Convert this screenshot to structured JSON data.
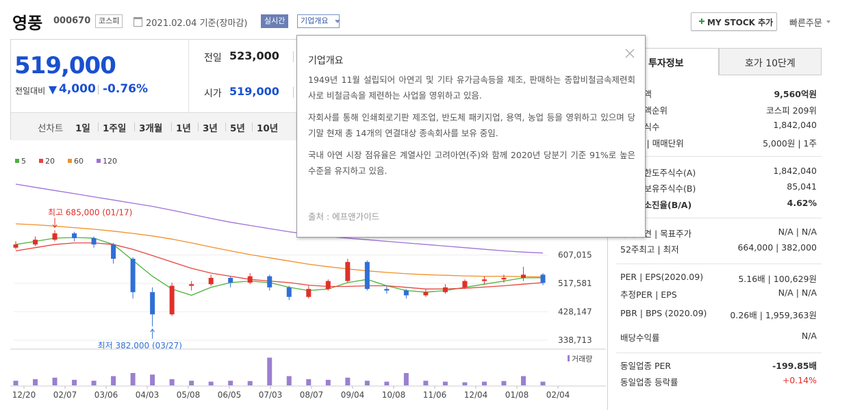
{
  "header": {
    "name": "영풍",
    "code": "000670",
    "market": "코스피",
    "date": "2021.02.04 기준(장마감)",
    "realtime": "실시간",
    "overview_button": "기업개요",
    "mystock_button": "MY STOCK 추가",
    "quick_order": "빠른주문"
  },
  "quote": {
    "price": "519,000",
    "change_label": "전일대비",
    "change": "4,000",
    "change_rate": "-0.76%",
    "prev_label": "전일",
    "prev": "523,000",
    "open_label": "시가",
    "open": "519,000"
  },
  "periods": [
    "선차트",
    "1일",
    "1주일",
    "3개월",
    "1년",
    "3년",
    "5년",
    "10년"
  ],
  "chart_data": {
    "type": "candlestick",
    "candles": [
      [
        630000,
        650000,
        625000,
        640000
      ],
      [
        640000,
        665000,
        635000,
        655000
      ],
      [
        655000,
        685000,
        650000,
        675000
      ],
      [
        675000,
        680000,
        650000,
        660000
      ],
      [
        660000,
        665000,
        630000,
        640000
      ],
      [
        640000,
        645000,
        580000,
        595000
      ],
      [
        595000,
        600000,
        470000,
        490000
      ],
      [
        490000,
        505000,
        382000,
        420000
      ],
      [
        420000,
        520000,
        415000,
        510000
      ],
      [
        510000,
        525000,
        495000,
        515000
      ],
      [
        515000,
        545000,
        510000,
        535000
      ],
      [
        535000,
        540000,
        505000,
        520000
      ],
      [
        520000,
        550000,
        515000,
        540000
      ],
      [
        540000,
        545000,
        495000,
        505000
      ],
      [
        505000,
        510000,
        465000,
        475000
      ],
      [
        475000,
        510000,
        470000,
        500000
      ],
      [
        500000,
        530000,
        495000,
        525000
      ],
      [
        525000,
        595000,
        520000,
        585000
      ],
      [
        585000,
        590000,
        495000,
        500000
      ],
      [
        500000,
        510000,
        485000,
        495000
      ],
      [
        495000,
        500000,
        470000,
        480000
      ],
      [
        480000,
        500000,
        475000,
        490000
      ],
      [
        490000,
        515000,
        485000,
        505000
      ],
      [
        505000,
        530000,
        500000,
        525000
      ],
      [
        525000,
        540000,
        515000,
        530000
      ],
      [
        530000,
        545000,
        520000,
        535000
      ],
      [
        535000,
        570000,
        525000,
        545000
      ],
      [
        545000,
        550000,
        512000,
        519000
      ]
    ],
    "up_color": "#e0302a",
    "down_color": "#2f6fd6",
    "series": [
      {
        "name": "5",
        "color": "#4bb33a",
        "values": [
          640000,
          650000,
          660000,
          662000,
          660000,
          640000,
          590000,
          540000,
          500000,
          480000,
          505000,
          520000,
          525000,
          520000,
          505000,
          495000,
          500000,
          520000,
          530000,
          510000,
          495000,
          490000,
          495000,
          505000,
          515000,
          525000,
          535000,
          535000
        ]
      },
      {
        "name": "20",
        "color": "#e8433d",
        "values": [
          620000,
          630000,
          640000,
          645000,
          645000,
          640000,
          625000,
          605000,
          585000,
          565000,
          550000,
          540000,
          530000,
          525000,
          520000,
          512000,
          508000,
          508000,
          510000,
          510000,
          505000,
          500000,
          500000,
          502000,
          506000,
          510000,
          515000,
          520000
        ]
      },
      {
        "name": "60",
        "color": "#f0902a",
        "values": [
          705000,
          702000,
          698000,
          693000,
          688000,
          682000,
          675000,
          667000,
          657000,
          645000,
          632000,
          620000,
          608000,
          598000,
          588000,
          578000,
          570000,
          563000,
          557000,
          552000,
          548000,
          545000,
          543000,
          541000,
          540000,
          540000,
          539000,
          538000
        ]
      },
      {
        "name": "120",
        "color": "#a070d8",
        "values": [
          830000,
          820000,
          810000,
          800000,
          790000,
          780000,
          770000,
          760000,
          748000,
          735000,
          722000,
          710000,
          700000,
          690000,
          680000,
          672000,
          665000,
          660000,
          655000,
          650000,
          645000,
          640000,
          635000,
          630000,
          625000,
          620000,
          616000,
          613000
        ]
      }
    ],
    "ylim": [
      321500,
      871000
    ],
    "yticks": [
      {
        "value": 338713,
        "label": "338,713"
      },
      {
        "value": 428147,
        "label": "428,147"
      },
      {
        "value": 517581,
        "label": "517,581"
      },
      {
        "value": 607015,
        "label": "607,015"
      }
    ],
    "grid": true,
    "xtick_labels": [
      "12/20",
      "02/07",
      "03/06",
      "04/03",
      "05/08",
      "06/05",
      "07/03",
      "08/07",
      "09/04",
      "10/08",
      "11/06",
      "12/04",
      "01/08",
      "02/04"
    ],
    "high_annotation": "최고 685,000 (01/17)",
    "low_annotation": "최저 382,000 (03/27)",
    "volume_label": "거래량",
    "volume_color": "#9b7fd0",
    "volume": [
      15,
      20,
      25,
      18,
      15,
      30,
      40,
      35,
      20,
      15,
      12,
      15,
      14,
      90,
      30,
      20,
      18,
      25,
      15,
      12,
      40,
      15,
      12,
      10,
      12,
      14,
      30,
      12
    ],
    "volume_ylim": [
      0,
      100
    ]
  },
  "popup": {
    "title": "기업개요",
    "paragraphs": [
      "1949년 11월 설립되어 아연괴 및 기타 유가금속등을 제조, 판매하는 종합비철금속제련회사로 비철금속을 제련하는 사업을 영위하고 있음.",
      "자회사를 통해 인쇄회로기판 제조업, 반도체 패키지업, 용역, 농업 등을 영위하고 있으며 당기말 현재 총 14개의 연결대상 종속회사를 보유 중임.",
      "국내 아연 시장 점유율은 계열사인 고려아연(주)와 함께 2020년 당분기 기준 91%로 높은 수준을 유지하고 있음."
    ],
    "source": "출처 : 에프앤가이드"
  },
  "invest_info": {
    "tabs": [
      "투자정보",
      "호가 10단계"
    ],
    "groups": [
      [
        {
          "label": "시가총액",
          "value": "9,560억원"
        },
        {
          "label": "시가총액순위",
          "value": "코스피 209위"
        },
        {
          "label": "상장주식수",
          "value": "1,842,040"
        },
        {
          "label": "액면가 | 매매단위",
          "value": "5,000원 | 1주"
        }
      ],
      [
        {
          "label": "외국인한도주식수(A)",
          "value": "1,842,040"
        },
        {
          "label": "외국인보유주식수(B)",
          "value": "85,041"
        },
        {
          "label": "외국인소진율(B/A)",
          "value": "4.62%"
        }
      ],
      [
        {
          "label": "투자의견 | 목표주가",
          "value": "N/A | N/A"
        },
        {
          "label": "52주최고 | 최저",
          "value": "664,000 | 382,000"
        }
      ],
      [
        {
          "label": "PER | EPS(2020.09)",
          "value": "5.16배 | 100,629원"
        },
        {
          "label": "추정PER | EPS",
          "value": "N/A | N/A"
        },
        {
          "label": "PBR | BPS (2020.09)",
          "value": "0.26배 | 1,959,363원"
        },
        {
          "label": "배당수익률",
          "value": "N/A"
        }
      ],
      [
        {
          "label": "동일업종 PER",
          "value": "-199.85배"
        },
        {
          "label": "동일업종 등락률",
          "value": "+0.14%"
        }
      ]
    ]
  }
}
